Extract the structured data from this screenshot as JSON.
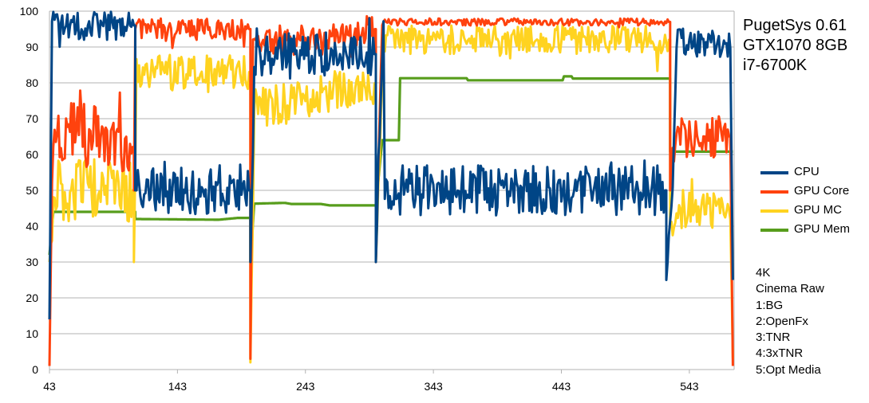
{
  "chart_data": {
    "type": "line",
    "title_lines": [
      "PugetSys 0.61",
      "GTX1070 8GB",
      "i7-6700K"
    ],
    "notes": [
      "4K",
      "Cinema Raw",
      "1:BG",
      "2:OpenFx",
      "3:TNR",
      "4:3xTNR",
      "5:Opt Media"
    ],
    "x_ticks": [
      "43",
      "143",
      "243",
      "343",
      "443",
      "543"
    ],
    "x_range": [
      43,
      578
    ],
    "y_ticks": [
      "0",
      "10",
      "20",
      "30",
      "40",
      "50",
      "60",
      "70",
      "80",
      "90",
      "100"
    ],
    "ylim": [
      0,
      100
    ],
    "grid": "horizontal",
    "legend_placement": "right",
    "series": [
      {
        "name": "CPU",
        "color": "#004586",
        "segments": [
          {
            "x": [
              43,
              45,
              46,
              110
            ],
            "y": [
              14,
              99,
              96,
              96
            ],
            "noise": 4
          },
          {
            "x": [
              110,
              200
            ],
            "y": [
              50,
              50
            ],
            "noise": 7
          },
          {
            "x": [
              200,
              203,
              205,
              298
            ],
            "y": [
              30,
              80,
              88,
              88
            ],
            "noise": 6
          },
          {
            "x": [
              298,
              304,
              305,
              525
            ],
            "y": [
              30,
              98,
              50,
              50
            ],
            "noise": 7
          },
          {
            "x": [
              525,
              530,
              533,
              575,
              577
            ],
            "y": [
              25,
              50,
              92,
              90,
              25
            ],
            "noise": 4
          }
        ]
      },
      {
        "name": "GPU Core",
        "color": "#ff420e",
        "segments": [
          {
            "x": [
              43,
              45,
              46,
              109
            ],
            "y": [
              1,
              55,
              68,
              62
            ],
            "noise": 9
          },
          {
            "x": [
              109,
              110,
              200
            ],
            "y": [
              50,
              95,
              95
            ],
            "noise": 3
          },
          {
            "x": [
              200,
              202,
              298
            ],
            "y": [
              3,
              90,
              95
            ],
            "noise": 4
          },
          {
            "x": [
              298,
              303,
              528
            ],
            "y": [
              30,
              97,
              97
            ],
            "noise": 1
          },
          {
            "x": [
              528,
              532,
              575,
              577
            ],
            "y": [
              50,
              65,
              65,
              1
            ],
            "noise": 6
          }
        ]
      },
      {
        "name": "GPU MC",
        "color": "#ffd320",
        "segments": [
          {
            "x": [
              43,
              47,
              109
            ],
            "y": [
              30,
              50,
              50
            ],
            "noise": 9
          },
          {
            "x": [
              109,
              111,
              200
            ],
            "y": [
              30,
              83,
              83
            ],
            "noise": 5
          },
          {
            "x": [
              200,
              203,
              298
            ],
            "y": [
              2,
              72,
              80
            ],
            "noise": 6
          },
          {
            "x": [
              298,
              304,
              528
            ],
            "y": [
              30,
              92,
              92
            ],
            "noise": 4
          },
          {
            "x": [
              528,
              532,
              575,
              577
            ],
            "y": [
              40,
              45,
              45,
              3
            ],
            "noise": 6
          }
        ]
      },
      {
        "name": "GPU Mem",
        "color": "#579d1c",
        "segments": [
          {
            "x": [
              43,
              46,
              110
            ],
            "y": [
              32,
              44,
              44
            ],
            "noise": 0
          },
          {
            "x": [
              110,
              111,
              175,
              190,
              200
            ],
            "y": [
              42,
              42,
              41.8,
              42.3,
              42.3
            ],
            "noise": 0
          },
          {
            "x": [
              200,
              203,
              204,
              227,
              232,
              255,
              262,
              298
            ],
            "y": [
              30,
              46.3,
              46.3,
              46.5,
              46.2,
              46.2,
              45.8,
              45.8
            ],
            "noise": 0
          },
          {
            "x": [
              298,
              303,
              304,
              316,
              317,
              369,
              370,
              444,
              445,
              451,
              452,
              528
            ],
            "y": [
              45.8,
              64,
              64,
              64,
              81.3,
              81.3,
              80.7,
              80.7,
              81.8,
              81.8,
              81.2,
              81.2
            ],
            "noise": 0
          },
          {
            "x": [
              528,
              532,
              577
            ],
            "y": [
              60.8,
              60.8,
              60.8
            ],
            "noise": 0
          }
        ]
      }
    ]
  }
}
